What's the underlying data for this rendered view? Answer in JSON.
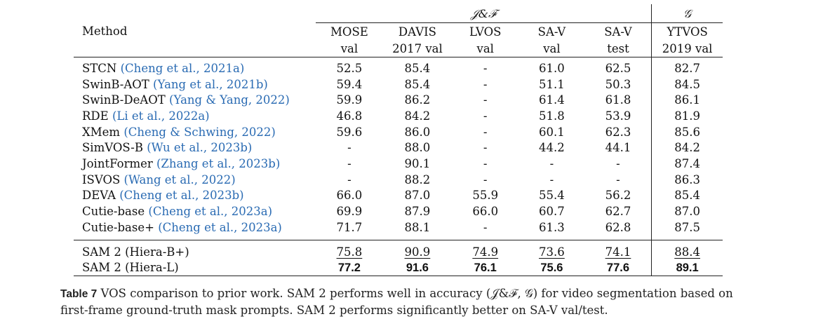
{
  "table": {
    "group_headers": {
      "jf": "𝒥&ℱ",
      "g": "𝒢"
    },
    "method_header": "Method",
    "columns": [
      {
        "line1": "MOSE",
        "line2": "val"
      },
      {
        "line1": "DAVIS",
        "line2": "2017 val"
      },
      {
        "line1": "LVOS",
        "line2": "val"
      },
      {
        "line1": "SA-V",
        "line2": "val"
      },
      {
        "line1": "SA-V",
        "line2": "test"
      },
      {
        "line1": "YTVOS",
        "line2": "2019 val"
      }
    ],
    "rows": [
      {
        "method": "STCN",
        "cite": "(Cheng et al., 2021a)",
        "v": [
          "52.5",
          "85.4",
          "-",
          "61.0",
          "62.5",
          "82.7"
        ]
      },
      {
        "method": "SwinB-AOT",
        "cite": "(Yang et al., 2021b)",
        "v": [
          "59.4",
          "85.4",
          "-",
          "51.1",
          "50.3",
          "84.5"
        ]
      },
      {
        "method": "SwinB-DeAOT",
        "cite": "(Yang & Yang, 2022)",
        "v": [
          "59.9",
          "86.2",
          "-",
          "61.4",
          "61.8",
          "86.1"
        ]
      },
      {
        "method": "RDE",
        "cite": "(Li et al., 2022a)",
        "v": [
          "46.8",
          "84.2",
          "-",
          "51.8",
          "53.9",
          "81.9"
        ]
      },
      {
        "method": "XMem",
        "cite": "(Cheng & Schwing, 2022)",
        "v": [
          "59.6",
          "86.0",
          "-",
          "60.1",
          "62.3",
          "85.6"
        ]
      },
      {
        "method": "SimVOS-B",
        "cite": "(Wu et al., 2023b)",
        "v": [
          "-",
          "88.0",
          "-",
          "44.2",
          "44.1",
          "84.2"
        ]
      },
      {
        "method": "JointFormer",
        "cite": "(Zhang et al., 2023b)",
        "v": [
          "-",
          "90.1",
          "-",
          "-",
          "-",
          "87.4"
        ]
      },
      {
        "method": "ISVOS",
        "cite": "(Wang et al., 2022)",
        "v": [
          "-",
          "88.2",
          "-",
          "-",
          "-",
          "86.3"
        ]
      },
      {
        "method": "DEVA",
        "cite": "(Cheng et al., 2023b)",
        "v": [
          "66.0",
          "87.0",
          "55.9",
          "55.4",
          "56.2",
          "85.4"
        ]
      },
      {
        "method": "Cutie-base",
        "cite": "(Cheng et al., 2023a)",
        "v": [
          "69.9",
          "87.9",
          "66.0",
          "60.7",
          "62.7",
          "87.0"
        ]
      },
      {
        "method": "Cutie-base+",
        "cite": "(Cheng et al., 2023a)",
        "v": [
          "71.7",
          "88.1",
          "-",
          "61.3",
          "62.8",
          "87.5"
        ]
      }
    ],
    "ours": [
      {
        "method": "SAM 2 (Hiera-B+)",
        "style": "underline",
        "v": [
          "75.8",
          "90.9",
          "74.9",
          "73.6",
          "74.1",
          "88.4"
        ]
      },
      {
        "method": "SAM 2 (Hiera-L)",
        "style": "bold",
        "v": [
          "77.2",
          "91.6",
          "76.1",
          "75.6",
          "77.6",
          "89.1"
        ]
      }
    ]
  },
  "caption": {
    "label": "Table 7",
    "text": "VOS comparison to prior work. SAM 2 performs well in accuracy (𝒥&ℱ, 𝒢) for video segmentation based on first-frame ground-truth mask prompts. SAM 2 performs significantly better on SA-V val/test."
  }
}
